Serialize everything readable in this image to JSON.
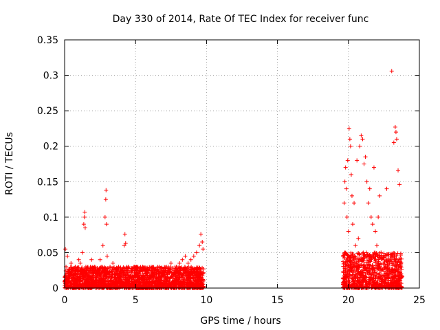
{
  "chart_data": {
    "type": "scatter",
    "title": "Day 330 of 2014, Rate Of TEC Index for receiver func",
    "xlabel": "GPS time / hours",
    "ylabel": "ROTI / TECUs",
    "xlim": [
      0,
      25
    ],
    "ylim": [
      0,
      0.35
    ],
    "xticks": [
      0,
      5,
      10,
      15,
      20,
      25
    ],
    "yticks": [
      0,
      0.05,
      0.1,
      0.15,
      0.2,
      0.25,
      0.3,
      0.35
    ],
    "xtick_labels": [
      "0",
      "5",
      "10",
      "15",
      "20",
      "25"
    ],
    "ytick_labels": [
      "0",
      "0.05",
      "0.1",
      "0.15",
      "0.2",
      "0.25",
      "0.3",
      "0.35"
    ],
    "grid": true,
    "marker": "+",
    "marker_color": "#ff0000",
    "series": [
      {
        "name": "ROTI",
        "x": [
          0.05,
          0.1,
          0.2,
          0.3,
          0.45,
          0.6,
          0.75,
          0.9,
          1.0,
          1.1,
          1.25,
          1.35,
          1.4,
          1.42,
          1.45,
          1.5,
          1.7,
          1.9,
          2.1,
          2.3,
          2.5,
          2.7,
          2.85,
          2.9,
          2.92,
          2.95,
          3.0,
          3.2,
          3.4,
          3.6,
          3.8,
          4.0,
          4.2,
          4.25,
          4.3,
          4.5,
          4.7,
          4.9,
          5.1,
          5.3,
          5.5,
          5.7,
          5.9,
          6.1,
          6.3,
          6.5,
          6.7,
          6.9,
          7.1,
          7.3,
          7.5,
          7.7,
          7.9,
          8.1,
          8.3,
          8.5,
          8.7,
          8.9,
          9.1,
          9.3,
          9.5,
          9.6,
          9.7,
          9.75,
          19.7,
          19.75,
          19.8,
          19.85,
          19.9,
          19.95,
          20.0,
          20.05,
          20.1,
          20.15,
          20.2,
          20.25,
          20.3,
          20.4,
          20.5,
          20.6,
          20.7,
          20.8,
          20.9,
          21.0,
          21.1,
          21.2,
          21.3,
          21.4,
          21.5,
          21.6,
          21.7,
          21.8,
          21.9,
          22.0,
          22.1,
          22.2,
          22.3,
          22.5,
          22.6,
          22.7,
          22.8,
          23.0,
          23.05,
          23.2,
          23.3,
          23.35,
          23.4,
          23.5,
          23.6,
          23.7
        ],
        "y": [
          0.055,
          0.03,
          0.045,
          0.02,
          0.035,
          0.025,
          0.03,
          0.02,
          0.04,
          0.035,
          0.05,
          0.09,
          0.1,
          0.107,
          0.085,
          0.03,
          0.025,
          0.04,
          0.03,
          0.025,
          0.04,
          0.06,
          0.1,
          0.125,
          0.138,
          0.09,
          0.045,
          0.03,
          0.035,
          0.025,
          0.03,
          0.02,
          0.06,
          0.076,
          0.063,
          0.03,
          0.025,
          0.03,
          0.02,
          0.025,
          0.03,
          0.02,
          0.025,
          0.03,
          0.02,
          0.025,
          0.03,
          0.02,
          0.025,
          0.03,
          0.035,
          0.025,
          0.03,
          0.035,
          0.04,
          0.045,
          0.035,
          0.04,
          0.045,
          0.05,
          0.06,
          0.076,
          0.065,
          0.055,
          0.12,
          0.15,
          0.17,
          0.14,
          0.1,
          0.18,
          0.08,
          0.225,
          0.21,
          0.2,
          0.16,
          0.13,
          0.09,
          0.12,
          0.06,
          0.18,
          0.07,
          0.2,
          0.215,
          0.21,
          0.175,
          0.185,
          0.15,
          0.12,
          0.14,
          0.1,
          0.09,
          0.17,
          0.08,
          0.06,
          0.1,
          0.13,
          0.05,
          0.04,
          0.03,
          0.14,
          0.03,
          0.04,
          0.306,
          0.205,
          0.227,
          0.22,
          0.21,
          0.166,
          0.146,
          0.03
        ],
        "dense_bands": [
          {
            "x_range": [
              0.0,
              9.8
            ],
            "y_range": [
              0.0,
              0.03
            ]
          },
          {
            "x_range": [
              19.6,
              23.8
            ],
            "y_range": [
              0.0,
              0.05
            ]
          }
        ]
      }
    ]
  }
}
